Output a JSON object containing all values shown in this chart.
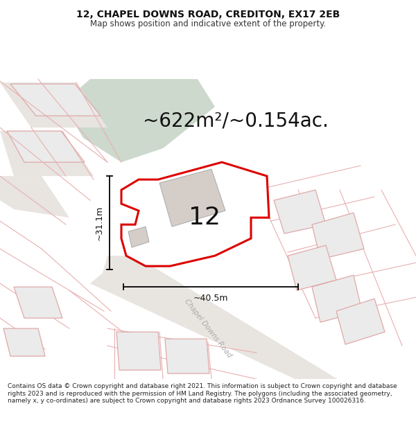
{
  "title": "12, CHAPEL DOWNS ROAD, CREDITON, EX17 2EB",
  "subtitle": "Map shows position and indicative extent of the property.",
  "area_label": "~622m²/~0.154ac.",
  "number_label": "12",
  "width_label": "~40.5m",
  "height_label": "~31.1m",
  "footer": "Contains OS data © Crown copyright and database right 2021. This information is subject to Crown copyright and database rights 2023 and is reproduced with the permission of HM Land Registry. The polygons (including the associated geometry, namely x, y co-ordinates) are subject to Crown copyright and database rights 2023 Ordnance Survey 100026316.",
  "bg_color": "#f5f0eb",
  "map_bg": "#ffffff",
  "green_area_color": "#ccd9cc",
  "road_fill_color": "#e8e4e0",
  "plot_outline_color": "#dd0000",
  "plot_fill_color": "#ffffff",
  "building_fill_color": "#d4cdc8",
  "neighbor_fill_color": "#eeeeee",
  "neighbor_line_color": "#e8b0b0",
  "title_fontsize": 10,
  "subtitle_fontsize": 8.5,
  "area_fontsize": 20,
  "number_fontsize": 26,
  "road_label": "Chapel Downs Road",
  "road_label_rotation": -52,
  "title_color": "#111111",
  "footer_fontsize": 6.5
}
